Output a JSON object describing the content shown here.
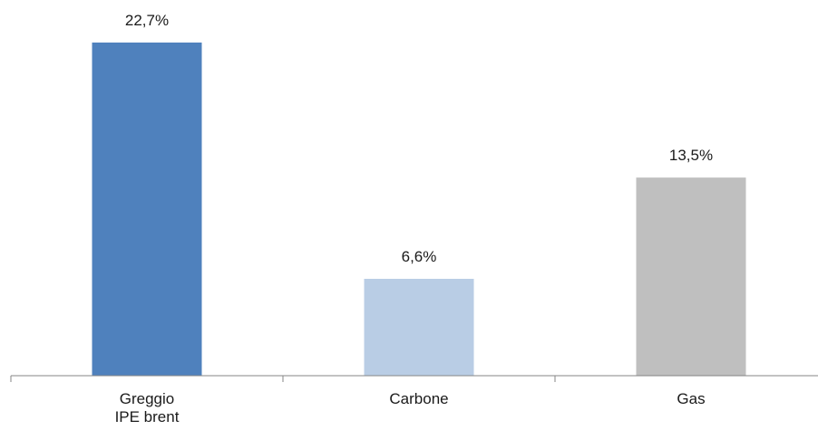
{
  "chart_data": {
    "type": "bar",
    "title": "",
    "xlabel": "",
    "ylabel": "",
    "ylim": [
      0,
      22.7
    ],
    "grid": false,
    "categories": [
      [
        "Greggio",
        "IPE brent"
      ],
      [
        "Carbone"
      ],
      [
        "Gas"
      ]
    ],
    "values": [
      22.7,
      6.6,
      13.5
    ],
    "value_labels": [
      "22,7%",
      "6,6%",
      "13,5%"
    ],
    "colors": [
      "#4f81bd",
      "#b9cde5",
      "#bfbfbf"
    ],
    "axis_color": "#868686"
  }
}
